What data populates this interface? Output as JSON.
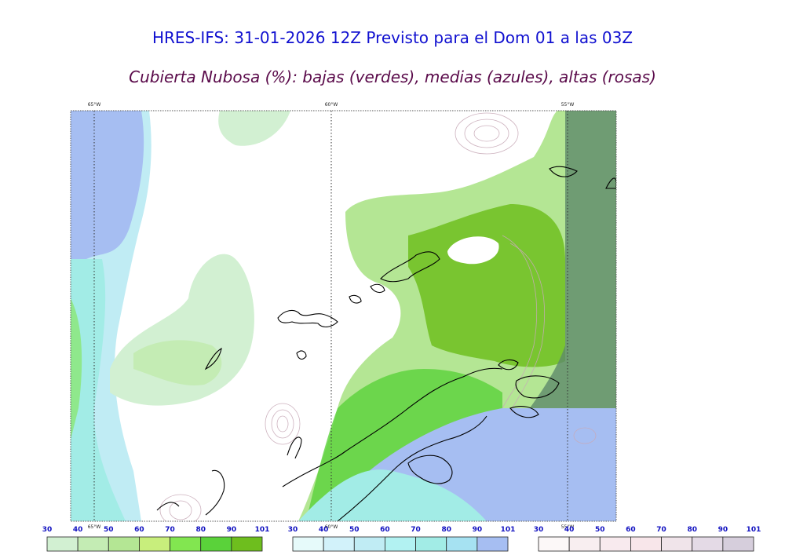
{
  "title": "HRES-IFS: 31-01-2026 12Z Previsto para el Dom 01 a las 03Z",
  "subtitle": "Cubierta Nubosa (%): bajas (verdes), medias (azules), altas (rosas)",
  "map": {
    "longitude_labels": [
      "65°W",
      "60°W",
      "55°W"
    ],
    "bottom_longitude_labels": [
      "65°W",
      "60°W",
      "55°W"
    ]
  },
  "colorbars": [
    {
      "name": "bajas",
      "ticks": [
        "30",
        "40",
        "50",
        "60",
        "70",
        "80",
        "90",
        "101"
      ],
      "colors": [
        "#d2f0d2",
        "#c4ecb4",
        "#b4e694",
        "#c8ee7c",
        "#82e650",
        "#5ad23a",
        "#6ebe1e"
      ]
    },
    {
      "name": "medias",
      "ticks": [
        "30",
        "40",
        "50",
        "60",
        "70",
        "80",
        "90",
        "101"
      ],
      "colors": [
        "#e6fafa",
        "#d2f2fa",
        "#c0ecf4",
        "#b2f2f2",
        "#a2ece6",
        "#a6e2f2",
        "#a6bef2"
      ]
    },
    {
      "name": "altas",
      "ticks": [
        "30",
        "40",
        "50",
        "60",
        "70",
        "80",
        "90",
        "101"
      ],
      "colors": [
        "#fcf8f8",
        "#f8eef0",
        "#f8eaee",
        "#f8e6ea",
        "#f0e4ea",
        "#e4dae6",
        "#d6cedc"
      ]
    }
  ]
}
